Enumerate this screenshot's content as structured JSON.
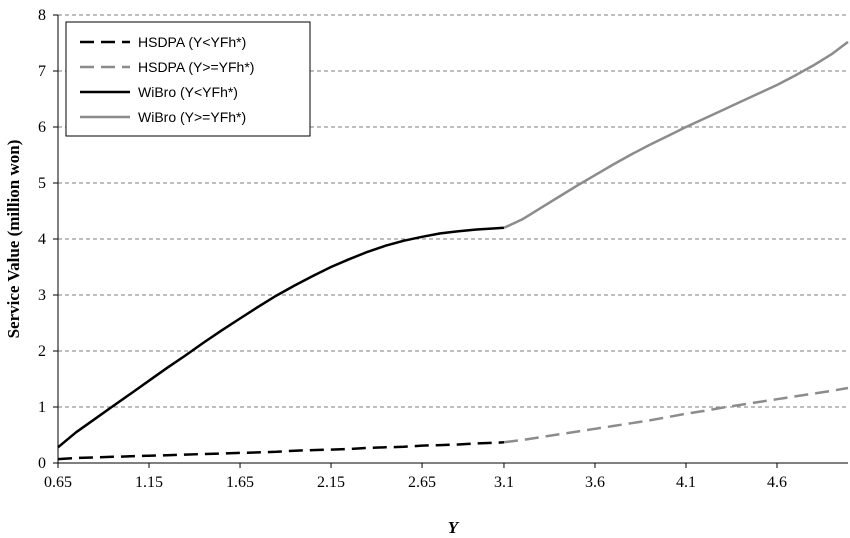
{
  "chart_data": {
    "type": "line",
    "title": "",
    "xlabel": "Y",
    "ylabel": "Service Value (million won)",
    "xlim": [
      0.65,
      4.99
    ],
    "ylim": [
      0,
      8
    ],
    "x_ticks": [
      0.65,
      1.15,
      1.65,
      2.15,
      2.65,
      3.1,
      3.6,
      4.1,
      4.6
    ],
    "x_tick_labels": [
      "0.65",
      "1.15",
      "1.65",
      "2.15",
      "2.65",
      "3.1",
      "3.6",
      "4.1",
      "4.6"
    ],
    "y_ticks": [
      0,
      1,
      2,
      3,
      4,
      5,
      6,
      7,
      8
    ],
    "y_tick_labels": [
      "0",
      "1",
      "2",
      "3",
      "4",
      "5",
      "6",
      "7",
      "8"
    ],
    "grid": "horizontal dashed",
    "legend_position": "top-left",
    "series": [
      {
        "name": "HSDPA (Y<YFh*)",
        "color": "#000000",
        "dash": "dashed",
        "x": [
          0.65,
          0.75,
          0.85,
          0.95,
          1.05,
          1.15,
          1.25,
          1.35,
          1.45,
          1.55,
          1.65,
          1.75,
          1.85,
          1.95,
          2.05,
          2.15,
          2.25,
          2.35,
          2.45,
          2.55,
          2.65,
          2.75,
          2.85,
          2.95,
          3.05,
          3.1
        ],
        "values": [
          0.07,
          0.09,
          0.1,
          0.11,
          0.12,
          0.13,
          0.14,
          0.15,
          0.16,
          0.17,
          0.18,
          0.19,
          0.2,
          0.22,
          0.23,
          0.24,
          0.25,
          0.27,
          0.28,
          0.29,
          0.31,
          0.32,
          0.33,
          0.35,
          0.36,
          0.37
        ]
      },
      {
        "name": "HSDPA (Y>=YFh*)",
        "color": "#8c8c8c",
        "dash": "dashed",
        "x": [
          3.1,
          3.2,
          3.3,
          3.4,
          3.5,
          3.6,
          3.7,
          3.8,
          3.9,
          4.0,
          4.1,
          4.2,
          4.3,
          4.4,
          4.5,
          4.6,
          4.7,
          4.8,
          4.9,
          4.99
        ],
        "values": [
          0.37,
          0.41,
          0.46,
          0.51,
          0.56,
          0.61,
          0.66,
          0.71,
          0.76,
          0.82,
          0.88,
          0.93,
          0.99,
          1.04,
          1.09,
          1.14,
          1.19,
          1.24,
          1.29,
          1.34
        ]
      },
      {
        "name": "WiBro (Y<YFh*)",
        "color": "#000000",
        "dash": "solid",
        "x": [
          0.65,
          0.75,
          0.85,
          0.95,
          1.05,
          1.15,
          1.25,
          1.35,
          1.45,
          1.55,
          1.65,
          1.75,
          1.85,
          1.95,
          2.05,
          2.15,
          2.25,
          2.35,
          2.45,
          2.55,
          2.65,
          2.75,
          2.85,
          2.95,
          3.05,
          3.1
        ],
        "values": [
          0.28,
          0.55,
          0.78,
          1.01,
          1.24,
          1.47,
          1.7,
          1.92,
          2.15,
          2.37,
          2.58,
          2.79,
          2.99,
          3.17,
          3.34,
          3.5,
          3.64,
          3.77,
          3.88,
          3.97,
          4.04,
          4.1,
          4.14,
          4.17,
          4.19,
          4.2
        ]
      },
      {
        "name": "WiBro (Y>=YFh*)",
        "color": "#8c8c8c",
        "dash": "solid",
        "x": [
          3.1,
          3.2,
          3.3,
          3.4,
          3.5,
          3.6,
          3.7,
          3.8,
          3.9,
          4.0,
          4.1,
          4.2,
          4.3,
          4.4,
          4.5,
          4.6,
          4.7,
          4.8,
          4.9,
          4.99
        ],
        "values": [
          4.2,
          4.35,
          4.55,
          4.75,
          4.95,
          5.14,
          5.33,
          5.51,
          5.68,
          5.84,
          6.0,
          6.15,
          6.3,
          6.45,
          6.6,
          6.75,
          6.92,
          7.1,
          7.3,
          7.52
        ]
      }
    ]
  }
}
